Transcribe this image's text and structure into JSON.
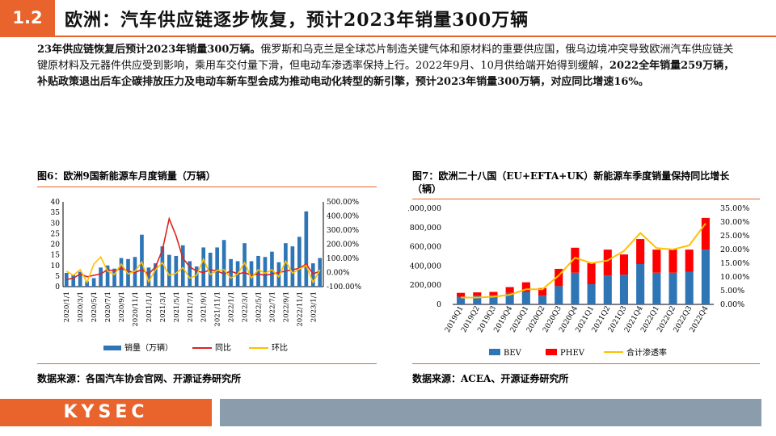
{
  "header": {
    "section_number": "1.2",
    "section_title": "欧洲：汽车供应链逐步恢复，预计2023年销量300万辆"
  },
  "intro": {
    "p1_bold": "23年供应链恢复后预计2023年销量300万辆。",
    "p1_text": "俄罗斯和乌克兰是全球芯片制造关键气体和原材料的重要供应国，俄乌边境冲突导致欧洲汽车供应链关键原材料及元器件供应受到影响，乘用车交付量下滑，但电动车渗透率保持上行。2022年9月、10月供给端开始得到缓解，",
    "p2_bold": "2022全年销量259万辆，补贴政策退出后车企碳排放压力及电动车新车型会成为推动电动化转型的新引擎，预计2023年销量300万辆，对应同比增速16%。"
  },
  "figures": {
    "fig6_title": "图6：欧洲9国新能源车月度销量（万辆）",
    "fig7_title": "图7：欧洲二十八国（EU+EFTA+UK）新能源车季度销量保持同比增长（辆）",
    "fig6_source": "数据来源：各国汽车协会官网、开源证券研究所",
    "fig7_source": "数据来源：ACEA、开源证券研究所"
  },
  "chart_data": [
    {
      "type": "bar",
      "id": "fig6",
      "x_ticks": [
        "2020/1/1",
        "2020/3/1",
        "2020/5/1",
        "2020/7/1",
        "2020/9/1",
        "2020/11/1",
        "2021/1/1",
        "2021/3/1",
        "2021/5/1",
        "2021/7/1",
        "2021/9/1",
        "2021/11/1",
        "2022/1/1",
        "2022/3/1",
        "2022/5/1",
        "2022/7/1",
        "2022/9/1",
        "2022/11/1",
        "2023/1/1"
      ],
      "categories": [
        "2020/1",
        "2020/2",
        "2020/3",
        "2020/4",
        "2020/5",
        "2020/6",
        "2020/7",
        "2020/8",
        "2020/9",
        "2020/10",
        "2020/11",
        "2020/12",
        "2021/1",
        "2021/2",
        "2021/3",
        "2021/4",
        "2021/5",
        "2021/6",
        "2021/7",
        "2021/8",
        "2021/9",
        "2021/10",
        "2021/11",
        "2021/12",
        "2022/1",
        "2022/2",
        "2022/3",
        "2022/4",
        "2022/5",
        "2022/6",
        "2022/7",
        "2022/8",
        "2022/9",
        "2022/10",
        "2022/11",
        "2022/12",
        "2023/1",
        "2023/2"
      ],
      "series": [
        {
          "name": "销量（万辆）",
          "axis": "left",
          "kind": "bar",
          "color": "#2e75b6",
          "values": [
            6.5,
            5.5,
            7,
            2.5,
            4,
            9,
            10,
            8.5,
            13.5,
            13,
            14,
            24.5,
            9,
            11,
            19,
            15,
            14.5,
            19.5,
            12,
            9.5,
            18.5,
            16,
            18.5,
            22,
            13,
            12,
            20.5,
            12,
            14.5,
            14,
            16.5,
            11.5,
            20.5,
            19,
            23.5,
            35.5,
            11,
            13.5
          ]
        },
        {
          "name": "同比",
          "axis": "right",
          "kind": "line",
          "color": "#e02020",
          "values": [
            -50,
            -40,
            -10,
            -30,
            -20,
            -10,
            20,
            10,
            30,
            10,
            0,
            20,
            -10,
            40,
            160,
            380,
            260,
            100,
            40,
            10,
            0,
            20,
            10,
            -10,
            10,
            -10,
            0,
            -20,
            -10,
            -20,
            -10,
            0,
            10,
            20,
            30,
            60,
            -10,
            10
          ]
        },
        {
          "name": "环比",
          "axis": "right",
          "kind": "line",
          "color": "#ffc000",
          "values": [
            10,
            -20,
            20,
            -70,
            60,
            110,
            10,
            -15,
            60,
            -10,
            10,
            75,
            -65,
            20,
            70,
            -20,
            -5,
            35,
            -40,
            -20,
            95,
            -15,
            15,
            20,
            -40,
            -10,
            70,
            -40,
            20,
            -5,
            20,
            -30,
            80,
            -5,
            25,
            50,
            -70,
            20
          ]
        }
      ],
      "left_axis": {
        "min": 0,
        "max": 40,
        "ticks": [
          "0",
          "5",
          "10",
          "15",
          "20",
          "25",
          "30",
          "35",
          "40"
        ]
      },
      "right_axis": {
        "min": -100,
        "max": 500,
        "ticks": [
          "-100.00%",
          "0.00%",
          "100.00%",
          "200.00%",
          "300.00%",
          "400.00%",
          "500.00%"
        ]
      },
      "legend": [
        "销量（万辆）",
        "同比",
        "环比"
      ],
      "legend_position": "bottom"
    },
    {
      "type": "bar",
      "stacked": true,
      "id": "fig7",
      "categories": [
        "2019Q1",
        "2019Q2",
        "2019Q3",
        "2019Q4",
        "2020Q1",
        "2020Q2",
        "2020Q3",
        "2020Q4",
        "2021Q1",
        "2021Q2",
        "2021Q3",
        "2021Q4",
        "2022Q1",
        "2022Q2",
        "2022Q3",
        "2022Q4"
      ],
      "series": [
        {
          "name": "BEV",
          "axis": "left",
          "kind": "bar",
          "color": "#2e75b6",
          "values": [
            80000,
            90000,
            95000,
            120000,
            130000,
            90000,
            190000,
            330000,
            210000,
            300000,
            310000,
            420000,
            330000,
            330000,
            340000,
            570000
          ]
        },
        {
          "name": "PHEV",
          "axis": "left",
          "kind": "bar",
          "color": "#ff0000",
          "values": [
            40000,
            35000,
            35000,
            60000,
            100000,
            80000,
            180000,
            260000,
            220000,
            270000,
            210000,
            260000,
            240000,
            240000,
            230000,
            330000
          ]
        },
        {
          "name": "合计渗透率",
          "axis": "right",
          "kind": "line",
          "color": "#ffc000",
          "values": [
            2.5,
            2.5,
            2.8,
            3.5,
            5.5,
            5.5,
            10.5,
            17,
            15,
            16,
            19.5,
            26,
            20.5,
            20,
            21.5,
            29.5
          ]
        }
      ],
      "left_axis": {
        "min": 0,
        "max": 1000000,
        "ticks": [
          "0",
          "200,000",
          "400,000",
          "600,000",
          "800,000",
          "1,000,000"
        ]
      },
      "right_axis": {
        "min": 0,
        "max": 35,
        "ticks": [
          "0.00%",
          "5.00%",
          "10.00%",
          "15.00%",
          "20.00%",
          "25.00%",
          "30.00%",
          "35.00%"
        ]
      },
      "legend": [
        "BEV",
        "PHEV",
        "合计渗透率"
      ],
      "legend_position": "bottom"
    }
  ],
  "footer": {
    "logo_text": "KYSEC"
  }
}
